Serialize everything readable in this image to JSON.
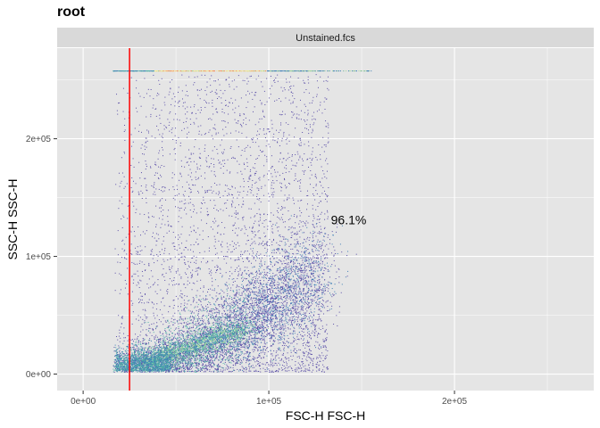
{
  "chart_data": {
    "type": "scatter",
    "title": "root",
    "facet_label": "Unstained.fcs",
    "xlabel": "FSC-H FSC-H",
    "ylabel": "SSC-H SSC-H",
    "xlim": [
      -14000,
      275000
    ],
    "ylim": [
      -14000,
      277000
    ],
    "x_ticks": [
      0,
      100000,
      200000
    ],
    "x_tick_labels": [
      "0e+00",
      "1e+05",
      "2e+05"
    ],
    "y_ticks": [
      0,
      100000,
      200000
    ],
    "y_tick_labels": [
      "0e+00",
      "1e+05",
      "2e+05"
    ],
    "gate_x": 25000,
    "gate_color": "#ff0000",
    "annotation": {
      "text": "96.1%",
      "x": 143000,
      "y": 131000
    },
    "density_palette": [
      "#5b4fa8",
      "#3f7fb6",
      "#4fb0a8",
      "#9fd69a",
      "#e8ef9c",
      "#fde28a",
      "#f68a59"
    ],
    "panel_background": "#e5e5e5",
    "strip_background": "#d9d9d9",
    "grid": true,
    "legend": "none",
    "population_summary": [
      {
        "x": 45000,
        "y": 15000,
        "density": "high"
      },
      {
        "x": 70000,
        "y": 35000,
        "density": "high"
      },
      {
        "x": 95000,
        "y": 60000,
        "density": "medium"
      },
      {
        "x": 60000,
        "y": 150000,
        "density": "low"
      },
      {
        "x": 18000,
        "y": 258000,
        "density": "saturated-row"
      }
    ]
  }
}
